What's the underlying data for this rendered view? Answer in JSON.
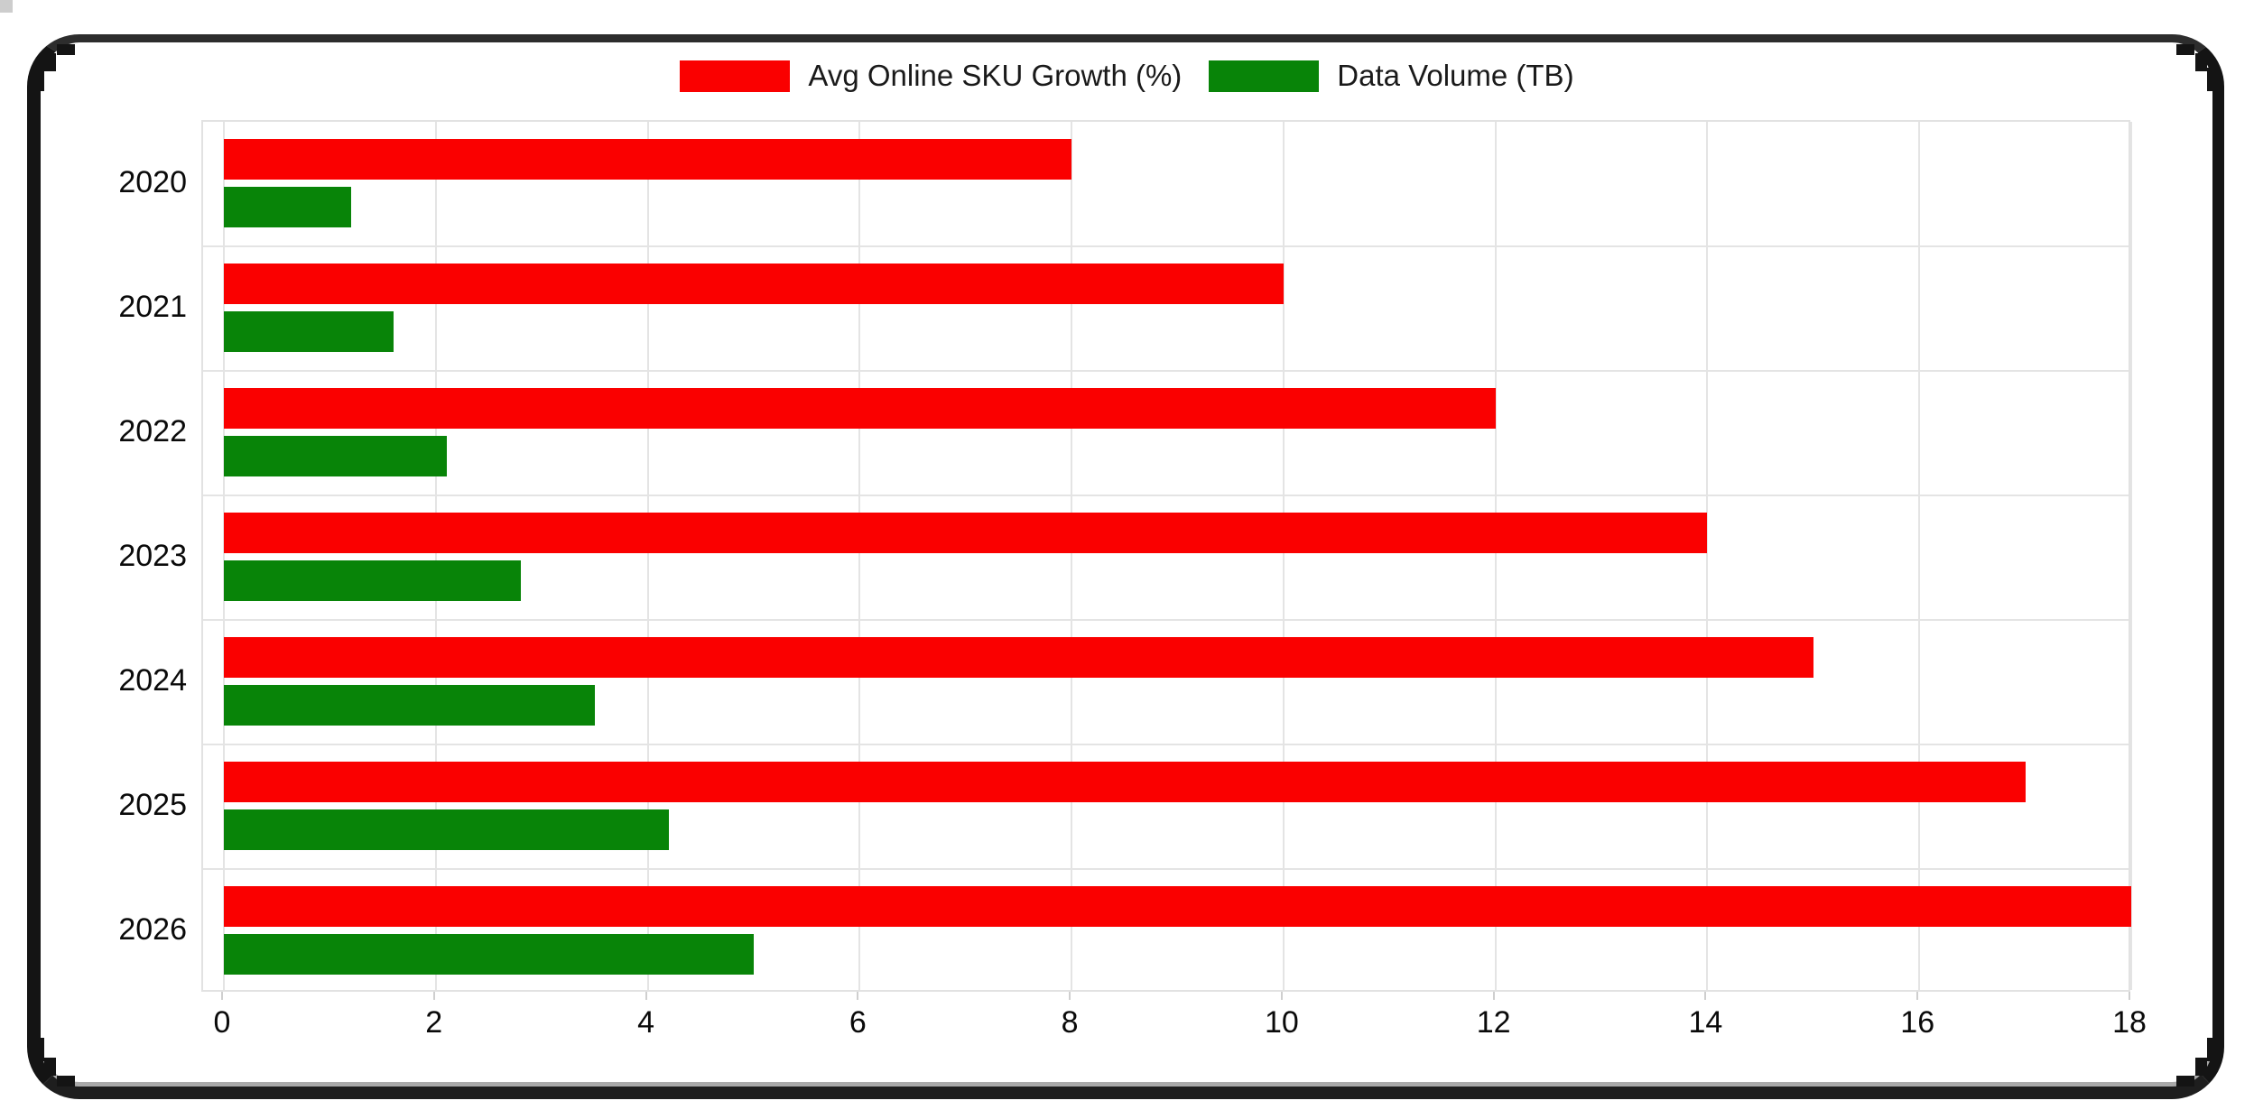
{
  "frame": {
    "border_color": "#141414",
    "top_border_color": "#2d2d2d",
    "bottom_bar_color": "#1e1e1e",
    "bottom_accent_color": "#a9a9a9",
    "background": "#ffffff"
  },
  "chart_data": {
    "type": "bar",
    "orientation": "horizontal",
    "title": "",
    "xlabel": "",
    "ylabel": "",
    "categories": [
      "2020",
      "2021",
      "2022",
      "2023",
      "2024",
      "2025",
      "2026"
    ],
    "series": [
      {
        "name": "Avg Online SKU Growth (%)",
        "color": "#fa0000",
        "values": [
          8,
          10,
          12,
          14,
          15,
          17,
          18
        ]
      },
      {
        "name": "Data Volume (TB)",
        "color": "#088408",
        "values": [
          1.2,
          1.6,
          2.1,
          2.8,
          3.5,
          4.2,
          5.0
        ]
      }
    ],
    "x_ticks": [
      "0",
      "2",
      "4",
      "6",
      "8",
      "10",
      "12",
      "14",
      "16",
      "18"
    ],
    "xlim": [
      0,
      18
    ],
    "grid": true,
    "gridline_color": "#e4e4e4",
    "legend_position": "top-center",
    "tick_label_color": "#0a0a0a"
  }
}
